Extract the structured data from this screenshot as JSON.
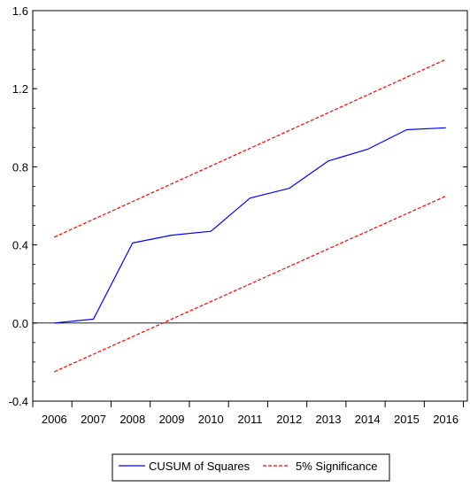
{
  "chart_data": {
    "type": "line",
    "title": "",
    "xlabel": "",
    "ylabel": "",
    "categories": [
      "2006",
      "2007",
      "2008",
      "2009",
      "2010",
      "2011",
      "2012",
      "2013",
      "2014",
      "2015",
      "2016"
    ],
    "x_ticks": [
      "2006",
      "2007",
      "2008",
      "2009",
      "2010",
      "2011",
      "2012",
      "2013",
      "2014",
      "2015",
      "2016"
    ],
    "xlim": [
      2005.45,
      2016.55
    ],
    "ylim": [
      -0.4,
      1.6
    ],
    "y_ticks": [
      -0.4,
      0.0,
      0.4,
      0.8,
      1.2,
      1.6
    ],
    "y_tick_labels": [
      "-0.4",
      "0.0",
      "0.4",
      "0.8",
      "1.2",
      "1.6"
    ],
    "grid": false,
    "zero_line": true,
    "legend_position": "bottom",
    "series": [
      {
        "name": "CUSUM of Squares",
        "color": "#0000ff",
        "style": "solid",
        "x": [
          2006,
          2007,
          2008,
          2009,
          2010,
          2011,
          2012,
          2013,
          2014,
          2015,
          2016
        ],
        "values": [
          0.0,
          0.02,
          0.41,
          0.45,
          0.47,
          0.64,
          0.69,
          0.83,
          0.89,
          0.99,
          1.0
        ]
      },
      {
        "name": "5% Significance",
        "color": "#ff0000",
        "style": "dashed",
        "x": [
          2006,
          2016
        ],
        "values": [
          0.44,
          1.35
        ]
      },
      {
        "name": "5% Significance",
        "color": "#ff0000",
        "style": "dashed",
        "legend": false,
        "x": [
          2006,
          2016
        ],
        "values": [
          -0.25,
          0.65
        ]
      }
    ]
  }
}
